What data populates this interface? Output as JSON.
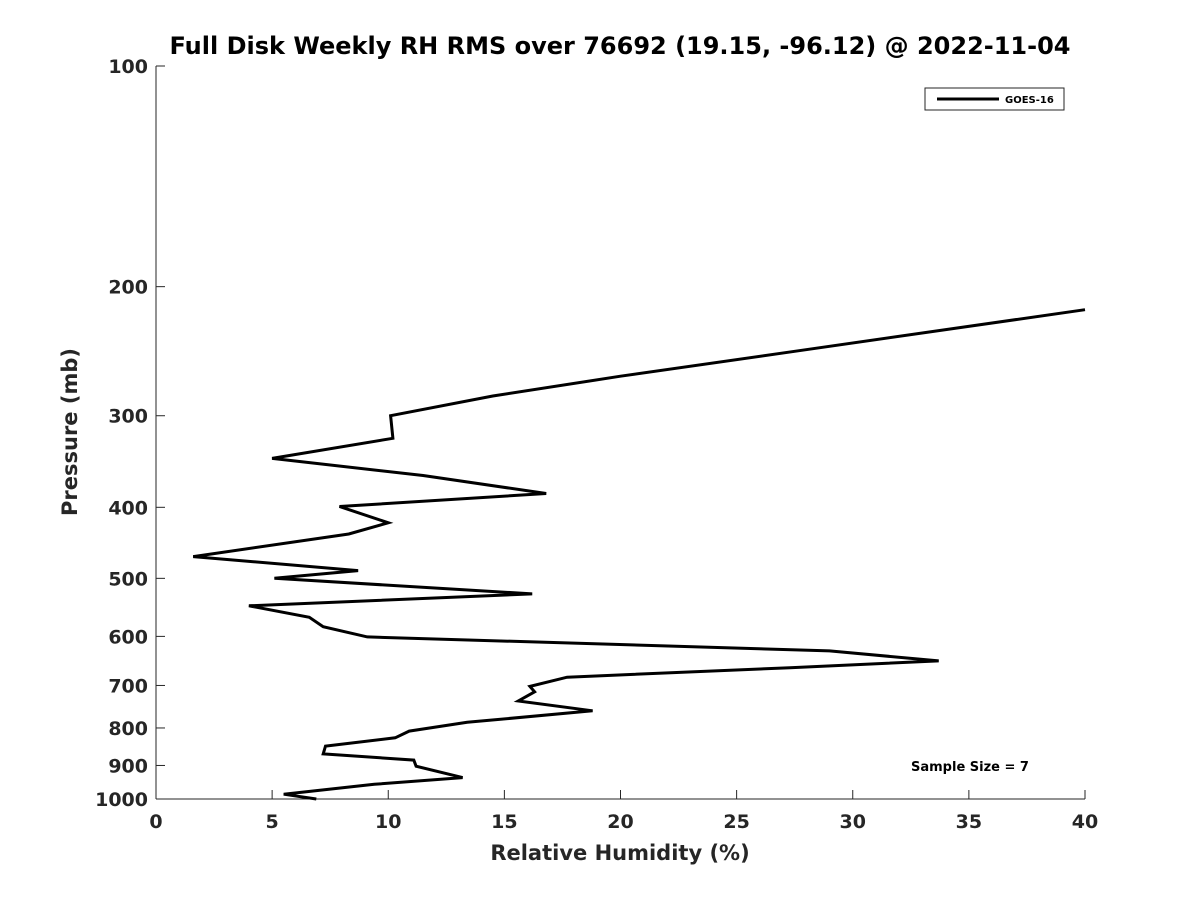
{
  "chart_data": {
    "type": "line",
    "title": "Full Disk Weekly RH RMS over 76692 (19.15, -96.12) @ 2022-11-04",
    "xlabel": "Relative Humidity (%)",
    "ylabel": "Pressure (mb)",
    "xlim": [
      0,
      40
    ],
    "ylim": [
      1000,
      100
    ],
    "yscale": "log",
    "x_ticks": [
      0,
      5,
      10,
      15,
      20,
      25,
      30,
      35,
      40
    ],
    "y_ticks": [
      100,
      200,
      300,
      400,
      500,
      600,
      700,
      800,
      900,
      1000
    ],
    "grid": false,
    "legend_position": "top-right",
    "series": [
      {
        "name": "GOES-16",
        "color": "#000000",
        "points": [
          {
            "x": 40.0,
            "y": 215
          },
          {
            "x": 27.5,
            "y": 245
          },
          {
            "x": 20.0,
            "y": 265
          },
          {
            "x": 14.5,
            "y": 282
          },
          {
            "x": 10.1,
            "y": 300
          },
          {
            "x": 10.2,
            "y": 322
          },
          {
            "x": 5.0,
            "y": 343
          },
          {
            "x": 11.5,
            "y": 362
          },
          {
            "x": 16.8,
            "y": 383
          },
          {
            "x": 7.9,
            "y": 399
          },
          {
            "x": 10.0,
            "y": 420
          },
          {
            "x": 8.3,
            "y": 435
          },
          {
            "x": 1.6,
            "y": 467
          },
          {
            "x": 8.7,
            "y": 488
          },
          {
            "x": 5.1,
            "y": 500
          },
          {
            "x": 16.2,
            "y": 525
          },
          {
            "x": 4.0,
            "y": 545
          },
          {
            "x": 6.6,
            "y": 565
          },
          {
            "x": 7.2,
            "y": 582
          },
          {
            "x": 9.1,
            "y": 601
          },
          {
            "x": 29.0,
            "y": 628
          },
          {
            "x": 33.7,
            "y": 648
          },
          {
            "x": 27.3,
            "y": 662
          },
          {
            "x": 17.7,
            "y": 682
          },
          {
            "x": 16.1,
            "y": 702
          },
          {
            "x": 16.3,
            "y": 714
          },
          {
            "x": 15.6,
            "y": 735
          },
          {
            "x": 18.8,
            "y": 758
          },
          {
            "x": 13.4,
            "y": 786
          },
          {
            "x": 10.9,
            "y": 808
          },
          {
            "x": 10.3,
            "y": 825
          },
          {
            "x": 7.3,
            "y": 847
          },
          {
            "x": 7.2,
            "y": 868
          },
          {
            "x": 11.1,
            "y": 885
          },
          {
            "x": 11.2,
            "y": 902
          },
          {
            "x": 13.2,
            "y": 935
          },
          {
            "x": 9.4,
            "y": 955
          },
          {
            "x": 5.5,
            "y": 985
          },
          {
            "x": 6.9,
            "y": 1000
          }
        ]
      }
    ],
    "annotations": [
      {
        "text": "Sample Size = 7",
        "x": 32.5,
        "y": 900
      }
    ]
  }
}
